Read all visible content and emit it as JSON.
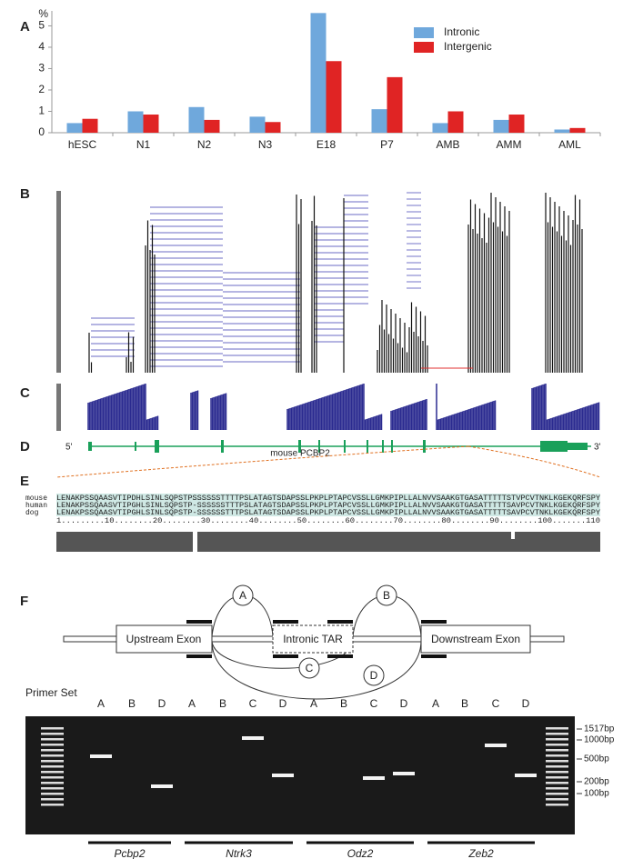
{
  "chart_data": {
    "type": "bar",
    "y_unit": "%",
    "categories": [
      "hESC",
      "N1",
      "N2",
      "N3",
      "E18",
      "P7",
      "AMB",
      "AMM",
      "AML"
    ],
    "series": [
      {
        "name": "Intronic",
        "color": "#6fa8dc",
        "values": [
          0.45,
          1.0,
          1.2,
          0.75,
          5.6,
          1.1,
          0.45,
          0.6,
          0.15
        ]
      },
      {
        "name": "Intergenic",
        "color": "#e02424",
        "values": [
          0.65,
          0.85,
          0.6,
          0.5,
          3.35,
          2.6,
          1.0,
          0.85,
          0.22
        ]
      }
    ],
    "ylim": [
      0,
      5.7
    ],
    "yticks": [
      0,
      1,
      2,
      3,
      4,
      5
    ],
    "grid": false,
    "legend": "top-right"
  },
  "panel_labels": [
    "A",
    "B",
    "C",
    "D",
    "E",
    "F"
  ],
  "gene_track": {
    "five_prime": "5'",
    "three_prime": "3'",
    "gene_label": "mouse PCBP2"
  },
  "alignment": {
    "species": [
      "mouse",
      "human",
      "dog"
    ],
    "sequences": [
      "LENAKPSSQAASVTIPDHLSINLSQPSTPSSSSSSTTTTPSLATAGTSDAPSSLPKPLPTAPCVSSLLGMKPIPLLALNVVSAAKGTGASATTTTTSTVPCVTNKLKGEKQRFSPY",
      "LENAKPSSQAASVTIPGHLSINLSQPSTP-SSSSSSTTTPSLATAGTSDAPSSLPKPLPTAPCVSSLLGMKPIPLLALNVVSAAKGTGASATTTTTSAVPCVTNKLKGEKQRFSPY",
      "LENAKPSSQAASVTIPGHLSINLSQPSTP-SSSSSSTTTPSLATAGTSDAPSSLPKPLPTAPCVSSLLGMKPIPLLALNVVSAAKGTGASATTTTTSAVPCVTNKLKGEKQRFSPY"
    ],
    "ruler": "1.........10........20........30........40........50........60........70........80........90........100.......110"
  },
  "diagram": {
    "upstream": "Upstream Exon",
    "tar": "Intronic TAR",
    "downstream": "Downstream Exon",
    "primers": [
      "A",
      "B",
      "C",
      "D"
    ]
  },
  "gel": {
    "primer_set": "Primer Set",
    "lanes": [
      "A",
      "B",
      "D",
      "A",
      "B",
      "C",
      "D",
      "A",
      "B",
      "C",
      "D",
      "A",
      "B",
      "C",
      "D"
    ],
    "sizes": [
      "1517bp",
      "1000bp",
      "500bp",
      "200bp",
      "100bp"
    ],
    "genes": [
      "Pcbp2",
      "Ntrk3",
      "Odz2",
      "Zeb2"
    ]
  }
}
